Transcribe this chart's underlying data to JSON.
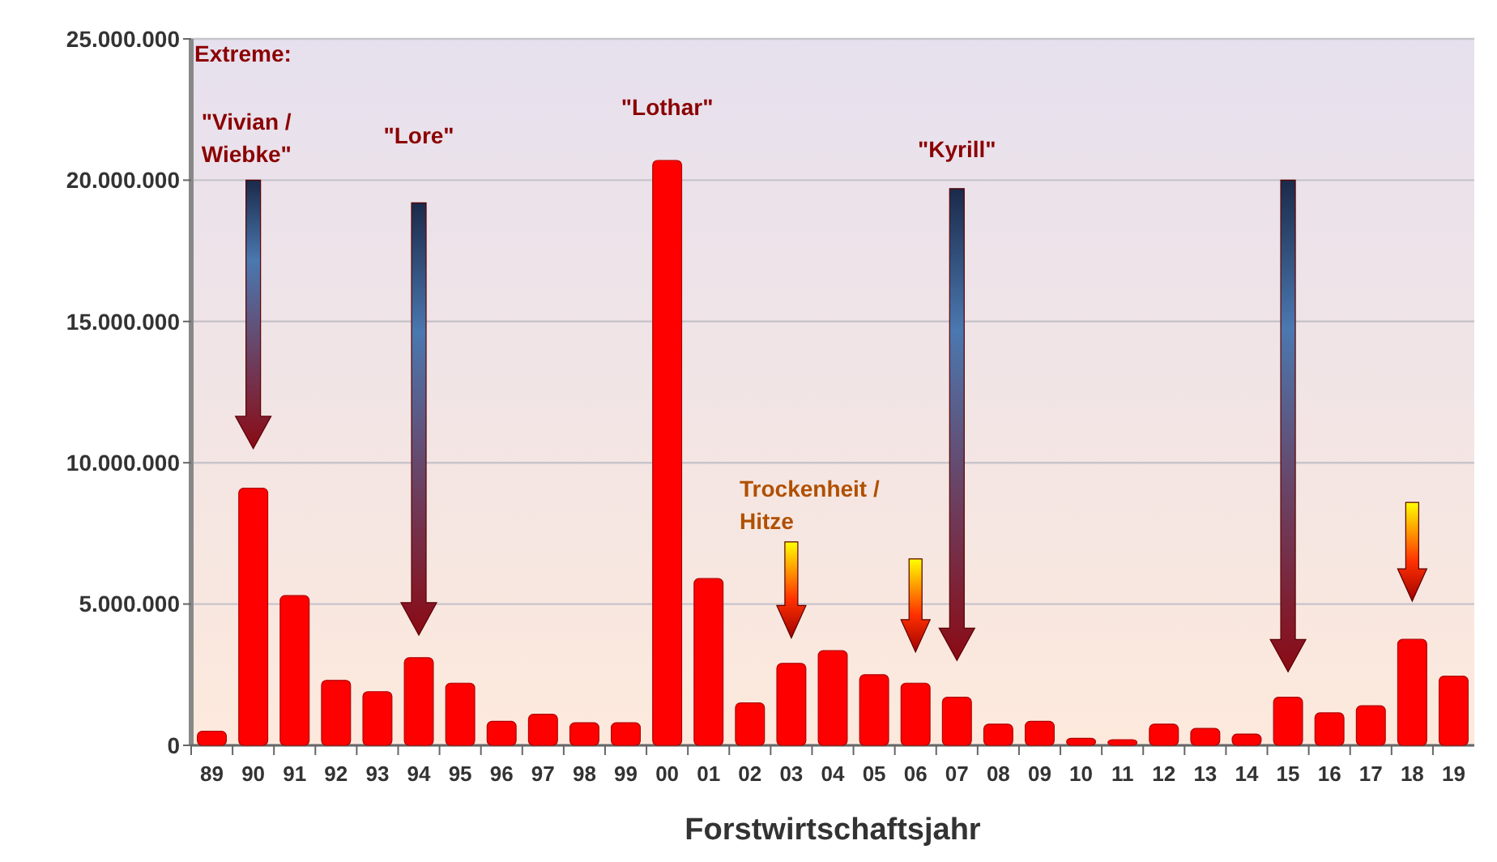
{
  "chart_data": {
    "type": "bar",
    "xlabel": "Forstwirtschaftsjahr",
    "categories": [
      "89",
      "90",
      "91",
      "92",
      "93",
      "94",
      "95",
      "96",
      "97",
      "98",
      "99",
      "00",
      "01",
      "02",
      "03",
      "04",
      "05",
      "06",
      "07",
      "08",
      "09",
      "10",
      "11",
      "12",
      "13",
      "14",
      "15",
      "16",
      "17",
      "18",
      "19"
    ],
    "values": [
      500000,
      9100000,
      5300000,
      2300000,
      1900000,
      3100000,
      2200000,
      850000,
      1100000,
      800000,
      800000,
      20700000,
      5900000,
      1500000,
      2900000,
      3350000,
      2500000,
      2200000,
      1700000,
      750000,
      850000,
      250000,
      200000,
      750000,
      600000,
      400000,
      1700000,
      1150000,
      1400000,
      3750000,
      2450000
    ],
    "color": "#ff0000",
    "ylim": [
      0,
      25000000
    ],
    "yticks": [
      {
        "value": 0,
        "label": "0"
      },
      {
        "value": 5000000,
        "label": "5.000.000"
      },
      {
        "value": 10000000,
        "label": "10.000.000"
      },
      {
        "value": 15000000,
        "label": "15.000.000"
      },
      {
        "value": 20000000,
        "label": "20.000.000"
      },
      {
        "value": 25000000,
        "label": "25.000.000"
      }
    ],
    "grid": "y",
    "annotations": [
      "Extreme:",
      "\"Vivian / Wiebke\"",
      "\"Lore\"",
      "\"Lothar\"",
      "\"Kyrill\"",
      "Trockenheit / Hitze"
    ]
  }
}
